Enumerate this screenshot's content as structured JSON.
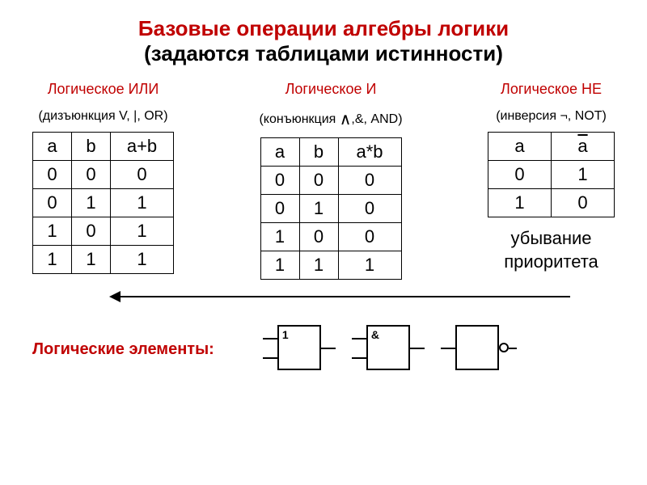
{
  "title": {
    "line1": "Базовые операции алгебры логики",
    "line2": "(задаются таблицами истинности)"
  },
  "columns": {
    "or": {
      "heading": "Логическое ИЛИ",
      "sub": "(дизъюнкция V, |, OR)",
      "headers": [
        "a",
        "b",
        "a+b"
      ],
      "rows": [
        [
          "0",
          "0",
          "0"
        ],
        [
          "0",
          "1",
          "1"
        ],
        [
          "1",
          "0",
          "1"
        ],
        [
          "1",
          "1",
          "1"
        ]
      ]
    },
    "and": {
      "heading": "Логическое И",
      "sub_pre": "(конъюнкция ",
      "sub_mid": "∧",
      "sub_post": ",&, AND)",
      "headers": [
        "a",
        "b",
        "a*b"
      ],
      "rows": [
        [
          "0",
          "0",
          "0"
        ],
        [
          "0",
          "1",
          "0"
        ],
        [
          "1",
          "0",
          "0"
        ],
        [
          "1",
          "1",
          "1"
        ]
      ]
    },
    "not": {
      "heading": "Логическое НЕ",
      "sub": "(инверсия ¬, NOT)",
      "headers": [
        "a",
        "a"
      ],
      "rows": [
        [
          "0",
          "1"
        ],
        [
          "1",
          "0"
        ]
      ]
    }
  },
  "priority": {
    "line1": "убывание",
    "line2": "приоритета"
  },
  "elementsLabel": "Логические элементы:",
  "gates": {
    "or": "1",
    "and": "&"
  },
  "colors": {
    "accent": "#c00000",
    "text": "#000000",
    "background": "#ffffff"
  }
}
